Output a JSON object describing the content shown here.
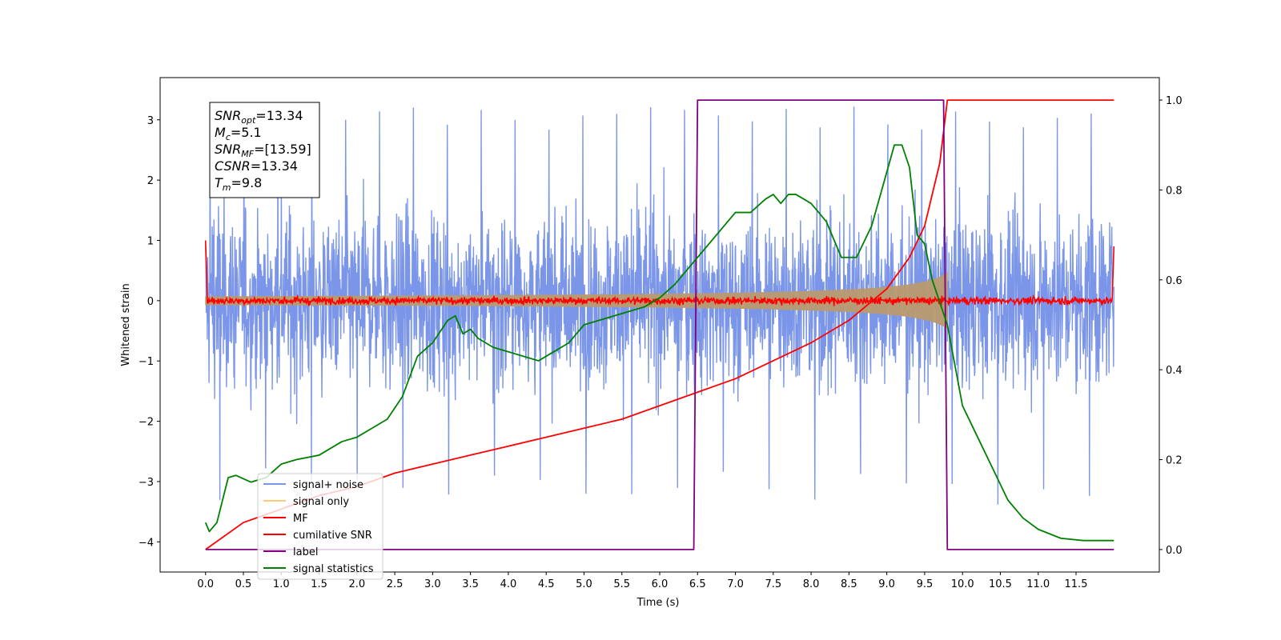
{
  "chart_data": {
    "type": "line",
    "xlabel": "Time (s)",
    "ylabel": "Whitened strain",
    "xlim": [
      -0.6,
      12.6
    ],
    "ylim": [
      -4.5,
      3.7
    ],
    "ylim_right": [
      -0.05,
      1.05
    ],
    "x_ticks": [
      "0.0",
      "0.5",
      "1.0",
      "1.5",
      "2.0",
      "2.5",
      "3.0",
      "3.5",
      "4.0",
      "4.5",
      "5.0",
      "5.5",
      "6.0",
      "6.5",
      "7.0",
      "7.5",
      "8.0",
      "8.5",
      "9.0",
      "9.5",
      "10.0",
      "10.5",
      "11.0",
      "11.5"
    ],
    "y_ticks_left": [
      "3",
      "2",
      "1",
      "0",
      "−1",
      "−2",
      "−3",
      "−4"
    ],
    "y_ticks_right": [
      "1.0",
      "0.8",
      "0.6",
      "0.4",
      "0.2",
      "0.0"
    ],
    "grid": false,
    "legend_position": "lower-left",
    "annotation": {
      "lines": [
        {
          "var": "SNR",
          "sub": "opt",
          "value": "=13.34"
        },
        {
          "var": "M",
          "sub": "c",
          "value": "=5.1"
        },
        {
          "var": "SNR",
          "sub": "MF",
          "value": "=[13.59]"
        },
        {
          "var": "CSNR",
          "sub": "",
          "value": "=13.34"
        },
        {
          "var": "T",
          "sub": "m",
          "value": "=9.8"
        }
      ]
    },
    "series": [
      {
        "name": "signal+ noise",
        "color": "#7b96e8",
        "axis": "left",
        "noise_amplitude": 1.6,
        "peak_high": 3.3,
        "peak_low": -3.4,
        "x_range": [
          0.0,
          12.0
        ]
      },
      {
        "name": "signal only",
        "color": "#ffc87a",
        "axis": "left",
        "chirp_end": 9.8,
        "amplitude_at_end": 0.55
      },
      {
        "name": "MF",
        "color": "#ff0000",
        "axis": "left",
        "noise_amplitude": 0.12
      },
      {
        "name": "cumilative SNR",
        "color": "#ff0000",
        "axis": "right",
        "x": [
          0.0,
          0.5,
          1.0,
          1.5,
          2.0,
          2.5,
          3.0,
          3.5,
          4.0,
          4.5,
          5.0,
          5.5,
          6.0,
          6.5,
          7.0,
          7.5,
          8.0,
          8.5,
          9.0,
          9.3,
          9.5,
          9.7,
          9.8,
          12.0
        ],
        "y": [
          0.0,
          0.06,
          0.09,
          0.12,
          0.14,
          0.17,
          0.19,
          0.21,
          0.23,
          0.25,
          0.27,
          0.29,
          0.32,
          0.35,
          0.38,
          0.42,
          0.46,
          0.51,
          0.58,
          0.65,
          0.72,
          0.86,
          1.0,
          1.0
        ]
      },
      {
        "name": "label",
        "color": "#800080",
        "axis": "right",
        "x": [
          0.0,
          6.45,
          6.5,
          9.75,
          9.8,
          12.0
        ],
        "y": [
          0.0,
          0.0,
          1.0,
          1.0,
          0.0,
          0.0
        ]
      },
      {
        "name": "signal statistics",
        "color": "#008000",
        "axis": "right",
        "x": [
          0.0,
          0.05,
          0.15,
          0.3,
          0.4,
          0.6,
          0.8,
          1.0,
          1.2,
          1.5,
          1.8,
          2.0,
          2.2,
          2.4,
          2.6,
          2.8,
          3.0,
          3.2,
          3.3,
          3.4,
          3.5,
          3.6,
          3.8,
          4.0,
          4.2,
          4.4,
          4.6,
          4.8,
          5.0,
          5.2,
          5.4,
          5.6,
          5.8,
          6.0,
          6.2,
          6.4,
          6.6,
          6.8,
          7.0,
          7.2,
          7.4,
          7.5,
          7.6,
          7.7,
          7.8,
          8.0,
          8.2,
          8.4,
          8.6,
          8.8,
          9.0,
          9.1,
          9.2,
          9.3,
          9.4,
          9.5,
          9.6,
          9.7,
          9.8,
          10.0,
          10.2,
          10.4,
          10.6,
          10.8,
          11.0,
          11.3,
          11.6,
          12.0
        ],
        "y": [
          0.06,
          0.04,
          0.06,
          0.16,
          0.165,
          0.15,
          0.16,
          0.19,
          0.2,
          0.21,
          0.24,
          0.25,
          0.27,
          0.29,
          0.34,
          0.43,
          0.46,
          0.51,
          0.52,
          0.48,
          0.49,
          0.47,
          0.45,
          0.44,
          0.43,
          0.42,
          0.44,
          0.46,
          0.5,
          0.51,
          0.52,
          0.53,
          0.54,
          0.56,
          0.59,
          0.63,
          0.67,
          0.71,
          0.75,
          0.75,
          0.78,
          0.79,
          0.77,
          0.79,
          0.79,
          0.77,
          0.73,
          0.65,
          0.65,
          0.72,
          0.84,
          0.9,
          0.9,
          0.85,
          0.7,
          0.68,
          0.6,
          0.55,
          0.5,
          0.32,
          0.25,
          0.18,
          0.11,
          0.07,
          0.045,
          0.025,
          0.02,
          0.02
        ]
      }
    ]
  }
}
